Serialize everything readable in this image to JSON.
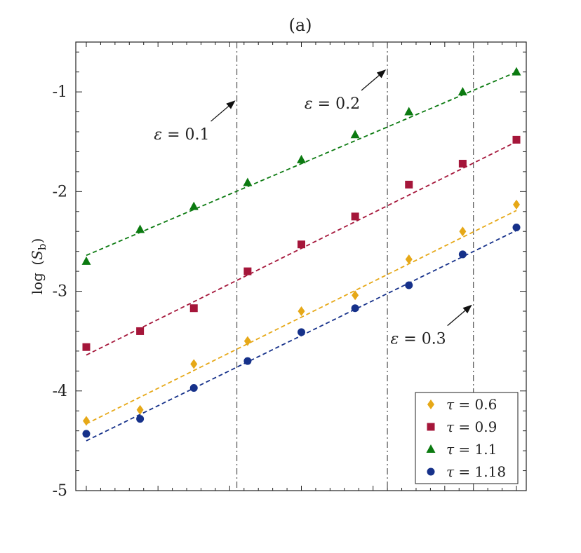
{
  "chart_data": {
    "type": "scatter",
    "title": "(a)",
    "xlabel": "",
    "ylabel": "log (S_b)",
    "ylabel_parts": {
      "func": "log",
      "open": "(",
      "var": "S",
      "sub": "b",
      "close": ")"
    },
    "xlim": [
      0.0,
      8.3
    ],
    "ylim": [
      -5,
      -0.5
    ],
    "yticks": [
      -5,
      -4,
      -3,
      -2,
      -1
    ],
    "ytick_labels": [
      "-5",
      "-4",
      "-3",
      "-2",
      "-1"
    ],
    "x": [
      0,
      1,
      2,
      3,
      4,
      5,
      6,
      7,
      8
    ],
    "series": [
      {
        "name": "τ = 0.6",
        "tau_symbol": "τ",
        "tau_value": "= 0.6",
        "marker": "diamond",
        "color": "#e6a817",
        "values": [
          -4.3,
          -4.19,
          -3.73,
          -3.5,
          -3.2,
          -3.04,
          -2.68,
          -2.4,
          -2.13
        ],
        "fit": [
          -4.33,
          -2.19
        ]
      },
      {
        "name": "τ = 0.9",
        "tau_symbol": "τ",
        "tau_value": "= 0.9",
        "marker": "square",
        "color": "#a5163a",
        "values": [
          -3.56,
          -3.4,
          -3.17,
          -2.8,
          -2.53,
          -2.25,
          -1.93,
          -1.72,
          -1.48
        ],
        "fit": [
          -3.64,
          -1.5
        ]
      },
      {
        "name": "τ = 1.1",
        "tau_symbol": "τ",
        "tau_value": "= 1.1",
        "marker": "triangle",
        "color": "#0b7a10",
        "values": [
          -2.7,
          -2.38,
          -2.15,
          -1.91,
          -1.68,
          -1.43,
          -1.2,
          -1.0,
          -0.8
        ],
        "fit": [
          -2.64,
          -0.8
        ]
      },
      {
        "name": "τ = 1.18",
        "tau_symbol": "τ",
        "tau_value": "= 1.18",
        "marker": "circle",
        "color": "#16318a",
        "values": [
          -4.43,
          -4.28,
          -3.97,
          -3.7,
          -3.41,
          -3.17,
          -2.94,
          -2.63,
          -2.36
        ],
        "fit": [
          -4.5,
          -2.39
        ]
      }
    ],
    "vertical_lines": [
      {
        "x": 2.8,
        "label_symbol": "ε",
        "label_value": "= 0.1",
        "arrow_tip": [
          2.8,
          -1.07
        ]
      },
      {
        "x": 5.6,
        "label_symbol": "ε",
        "label_value": "= 0.2",
        "arrow_tip": [
          5.6,
          -0.76
        ]
      },
      {
        "x": 7.2,
        "label_symbol": "ε",
        "label_value": "= 0.3",
        "arrow_tip": [
          7.2,
          -3.12
        ]
      }
    ],
    "legend_position": "bottom-right",
    "grid": false
  }
}
